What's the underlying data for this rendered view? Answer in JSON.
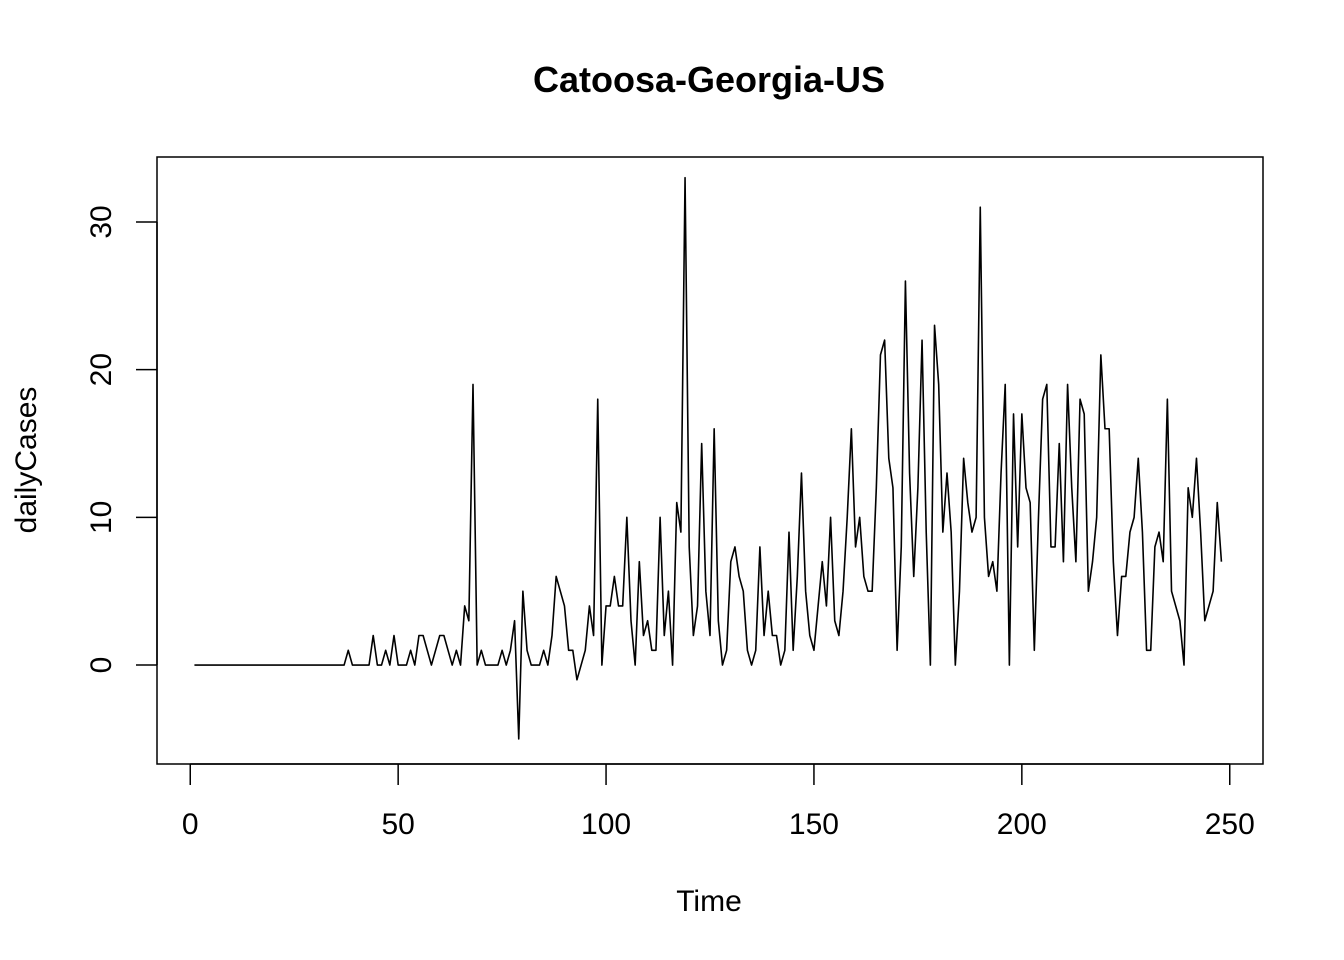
{
  "chart_data": {
    "type": "line",
    "title": "Catoosa-Georgia-US",
    "xlabel": "Time",
    "ylabel": "dailyCases",
    "xlim": [
      -8,
      258
    ],
    "ylim": [
      -6.7,
      34.4
    ],
    "xticks": [
      0,
      50,
      100,
      150,
      200,
      250
    ],
    "yticks": [
      0,
      10,
      20,
      30
    ],
    "grid": false,
    "legend": "none",
    "line_color": "#000000",
    "series": [
      {
        "values": [
          0,
          0,
          0,
          0,
          0,
          0,
          0,
          0,
          0,
          0,
          0,
          0,
          0,
          0,
          0,
          0,
          0,
          0,
          0,
          0,
          0,
          0,
          0,
          0,
          0,
          0,
          0,
          0,
          0,
          0,
          0,
          0,
          0,
          0,
          0,
          0,
          0,
          1,
          0,
          0,
          0,
          0,
          0,
          2,
          0,
          0,
          1,
          0,
          2,
          0,
          0,
          0,
          1,
          0,
          2,
          2,
          1,
          0,
          1,
          2,
          2,
          1,
          0,
          1,
          0,
          4,
          3,
          19,
          0,
          1,
          0,
          0,
          0,
          0,
          1,
          0,
          1,
          3,
          -5,
          5,
          1,
          0,
          0,
          0,
          1,
          0,
          2,
          6,
          5,
          4,
          1,
          1,
          -1,
          0,
          1,
          4,
          2,
          18,
          0,
          4,
          4,
          6,
          4,
          4,
          10,
          3,
          0,
          7,
          2,
          3,
          1,
          1,
          10,
          2,
          5,
          0,
          11,
          9,
          33,
          8,
          2,
          4,
          15,
          5,
          2,
          16,
          3,
          0,
          1,
          7,
          8,
          6,
          5,
          1,
          0,
          1,
          8,
          2,
          5,
          2,
          2,
          0,
          1,
          9,
          1,
          6,
          13,
          5,
          2,
          1,
          4,
          7,
          4,
          10,
          3,
          2,
          5,
          10,
          16,
          8,
          10,
          6,
          5,
          5,
          12,
          21,
          22,
          14,
          12,
          1,
          8,
          26,
          13,
          6,
          12,
          22,
          9,
          0,
          23,
          19,
          9,
          13,
          9,
          0,
          5,
          14,
          11,
          9,
          10,
          31,
          10,
          6,
          7,
          5,
          13,
          19,
          0,
          17,
          8,
          17,
          12,
          11,
          1,
          10,
          18,
          19,
          8,
          8,
          15,
          7,
          19,
          12,
          7,
          18,
          17,
          5,
          7,
          10,
          21,
          16,
          16,
          7,
          2,
          6,
          6,
          9,
          10,
          14,
          9,
          1,
          1,
          8,
          9,
          7,
          18,
          5,
          4,
          3,
          0,
          12,
          10,
          14,
          9,
          3,
          4,
          5,
          11,
          7
        ]
      }
    ]
  }
}
